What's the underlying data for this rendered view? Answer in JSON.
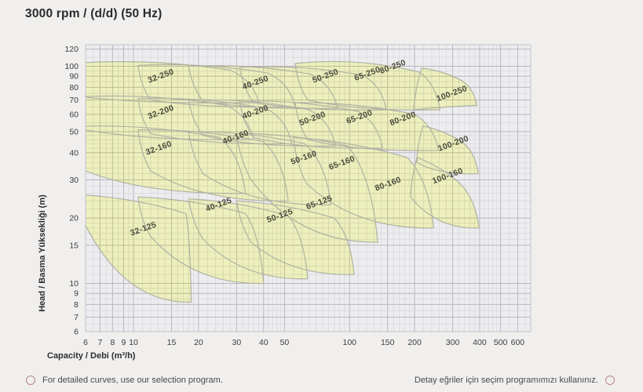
{
  "title": "3000 rpm / (d/d) (50 Hz)",
  "footer": {
    "left_text": "For detailed curves, use our selection program.",
    "right_text": "Detay eğriler için seçim programımızı kullanınız."
  },
  "colors": {
    "page_bg": "#f0efee",
    "plot_bg": "#ededef",
    "plot_border": "#c4c4ca",
    "grid_minor": "#d6d6dc",
    "grid_major": "#b7b7c0",
    "grid_minor_on_region": "#c6c9a2",
    "grid_major_on_region": "#abae87",
    "region_fill": "#edefbd",
    "region_stroke": "#b0b2a2",
    "region_label_text": "#4a4a3c",
    "tick_text": "#3d3d3d",
    "axis_title_text": "#2e2e2e",
    "footer_ring": "#b9848e"
  },
  "chart_data": {
    "type": "area",
    "title": "3000 rpm / (d/d) (50 Hz)",
    "description": "Pump family selection chart: coverage envelopes (capacity Q vs head H) for each pump model on log-log axes",
    "x_axis": {
      "label": "Capacity / Debi (m³/h)",
      "scale": "log",
      "range": [
        6,
        690
      ],
      "tick_labels": [
        6,
        7,
        8,
        9,
        10,
        15,
        20,
        30,
        40,
        50,
        100,
        150,
        200,
        300,
        400,
        500,
        600
      ]
    },
    "y_axis": {
      "label": "Head / Basma Yüksekliği (m)",
      "scale": "log",
      "range": [
        6,
        126
      ],
      "tick_labels": [
        6,
        7,
        8,
        9,
        10,
        15,
        20,
        30,
        40,
        50,
        60,
        70,
        80,
        90,
        100,
        120
      ]
    },
    "legend": "none",
    "grid": "on",
    "regions": [
      {
        "label": "32-250",
        "tl": [
          6,
          104
        ],
        "tr": [
          28,
          96
        ],
        "tip": [
          38,
          68
        ],
        "bl": [
          6,
          72
        ],
        "label_at": [
          13.5,
          88
        ]
      },
      {
        "label": "40-250",
        "tl": [
          10.5,
          101
        ],
        "tr": [
          42,
          93
        ],
        "tip": [
          56,
          65
        ],
        "bl": [
          12,
          70
        ],
        "label_at": [
          37,
          82
        ]
      },
      {
        "label": "50-250",
        "tl": [
          18,
          100
        ],
        "tr": [
          66,
          92
        ],
        "tip": [
          88,
          64
        ],
        "bl": [
          21,
          69
        ],
        "label_at": [
          78,
          88
        ]
      },
      {
        "label": "65-250",
        "tl": [
          31,
          99
        ],
        "tr": [
          115,
          91
        ],
        "tip": [
          148,
          63
        ],
        "bl": [
          36,
          68
        ],
        "label_at": [
          122,
          90
        ]
      },
      {
        "label": "80-250",
        "tl": [
          56,
          103
        ],
        "tr": [
          210,
          94
        ],
        "tip": [
          262,
          63
        ],
        "bl": [
          64,
          70
        ],
        "arch": 14,
        "label_at": [
          160,
          97
        ]
      },
      {
        "label": "100-250",
        "tl": [
          215,
          98
        ],
        "tr": [
          330,
          86
        ],
        "tip": [
          388,
          66
        ],
        "bl": [
          198,
          63
        ],
        "label_at": [
          300,
          73
        ]
      },
      {
        "label": "32-200",
        "tl": [
          6,
          72.5
        ],
        "tr": [
          27,
          66
        ],
        "tip": [
          36,
          46
        ],
        "bl": [
          6,
          51
        ],
        "label_at": [
          13.5,
          60
        ]
      },
      {
        "label": "40-200",
        "tl": [
          10.5,
          71
        ],
        "tr": [
          41,
          64
        ],
        "tip": [
          54,
          44
        ],
        "bl": [
          12,
          49
        ],
        "label_at": [
          37,
          60
        ]
      },
      {
        "label": "50-200",
        "tl": [
          18,
          70
        ],
        "tr": [
          65,
          63
        ],
        "tip": [
          86,
          43
        ],
        "bl": [
          21,
          48
        ],
        "label_at": [
          68,
          56
        ]
      },
      {
        "label": "65-200",
        "tl": [
          31,
          69
        ],
        "tr": [
          110,
          62
        ],
        "tip": [
          142,
          42
        ],
        "bl": [
          36,
          47
        ],
        "label_at": [
          112,
          57
        ]
      },
      {
        "label": "80-200",
        "tl": [
          56,
          68
        ],
        "tr": [
          200,
          60
        ],
        "tip": [
          258,
          41
        ],
        "bl": [
          64,
          46
        ],
        "label_at": [
          178,
          56
        ]
      },
      {
        "label": "100-200",
        "tl": [
          218,
          53
        ],
        "tr": [
          330,
          45
        ],
        "tip": [
          395,
          32
        ],
        "bl": [
          205,
          36
        ],
        "label_at": [
          305,
          43
        ]
      },
      {
        "label": "32-160",
        "tl": [
          6,
          53
        ],
        "tr": [
          25,
          47
        ],
        "tip": [
          33,
          26
        ],
        "bl": [
          6,
          33
        ],
        "label_at": [
          13.2,
          41
        ]
      },
      {
        "label": "40-160",
        "tl": [
          10.5,
          51
        ],
        "tr": [
          40,
          45
        ],
        "tip": [
          52,
          24
        ],
        "bl": [
          12,
          33
        ],
        "label_at": [
          30,
          46
        ]
      },
      {
        "label": "50-160",
        "tl": [
          18,
          50
        ],
        "tr": [
          62,
          44
        ],
        "tip": [
          82,
          23
        ],
        "bl": [
          21,
          32
        ],
        "label_at": [
          62,
          37
        ]
      },
      {
        "label": "65-160",
        "tl": [
          30,
          49
        ],
        "tr": [
          98,
          43
        ],
        "tip": [
          135,
          15.5
        ],
        "bl": [
          35,
          30
        ],
        "label_at": [
          93,
          35
        ]
      },
      {
        "label": "80-160",
        "tl": [
          55,
          47
        ],
        "tr": [
          185,
          38
        ],
        "tip": [
          245,
          18
        ],
        "bl": [
          63,
          29
        ],
        "label_at": [
          152,
          28
        ]
      },
      {
        "label": "100-160",
        "tl": [
          205,
          38
        ],
        "tr": [
          310,
          30
        ],
        "tip": [
          398,
          18
        ],
        "bl": [
          192,
          25
        ],
        "label_at": [
          287,
          30.5
        ]
      },
      {
        "label": "32-125",
        "tl": [
          6,
          25.5
        ],
        "tr": [
          17.5,
          21
        ],
        "tip": [
          18.5,
          8.2
        ],
        "bl": [
          6,
          18.5
        ],
        "label_at": [
          11.2,
          17.4
        ]
      },
      {
        "label": "40-125",
        "tl": [
          10.5,
          25
        ],
        "tr": [
          33,
          21
        ],
        "tip": [
          40,
          10
        ],
        "bl": [
          12,
          16.5
        ],
        "label_at": [
          25,
          22.5
        ]
      },
      {
        "label": "50-125",
        "tl": [
          18,
          24.5
        ],
        "tr": [
          52,
          20.5
        ],
        "tip": [
          64,
          10.5
        ],
        "bl": [
          21,
          16
        ],
        "label_at": [
          48,
          20
        ]
      },
      {
        "label": "65-125",
        "tl": [
          30,
          24
        ],
        "tr": [
          85,
          20
        ],
        "tip": [
          105,
          11
        ],
        "bl": [
          35,
          15.5
        ],
        "label_at": [
          73,
          23
        ]
      }
    ]
  }
}
